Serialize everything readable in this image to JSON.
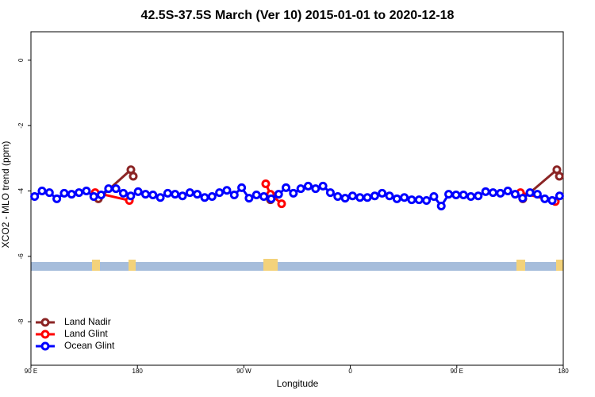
{
  "chart_data": {
    "type": "line",
    "title": "42.5S-37.5S March (Ver 10)   2015-01-01 to 2020-12-18",
    "x_label": "Longitude",
    "y_label": "XCO2 - MLO trend (ppm)",
    "xlim": [
      90,
      540
    ],
    "xticks": [
      {
        "value": 90,
        "label": "90 E"
      },
      {
        "value": 180,
        "label": "180"
      },
      {
        "value": 270,
        "label": "90 W"
      },
      {
        "value": 360,
        "label": "0"
      },
      {
        "value": 450,
        "label": "90 E"
      },
      {
        "value": 540,
        "label": "180"
      }
    ],
    "ylim": [
      -9.33,
      0.87
    ],
    "yticks": [
      -8,
      -6,
      -4,
      -2,
      0
    ],
    "legend": "bottom-left",
    "series": [
      {
        "name": "Land Nadir",
        "color": "#8b2525",
        "x": [
          147,
          174.5,
          176.5,
          292.5,
          505.8,
          534.6,
          536.7
        ],
        "values": [
          -4.24,
          -3.35,
          -3.55,
          -4.27,
          -4.24,
          -3.35,
          -3.55
        ]
      },
      {
        "name": "Land Glint",
        "color": "#ff0000",
        "x": [
          144.3,
          173.2,
          288.5,
          292.5,
          301.9,
          503.8,
          533.3
        ],
        "values": [
          -4.05,
          -4.29,
          -3.78,
          -4.1,
          -4.39,
          -4.05,
          -4.32
        ]
      },
      {
        "name": "Ocean Glint",
        "color": "#0000ff",
        "x": [
          93.125,
          99.375,
          105.625,
          111.875,
          118.125,
          124.375,
          130.625,
          136.875,
          143.125,
          149.375,
          155.625,
          161.875,
          168.125,
          174.375,
          180.625,
          186.875,
          193.125,
          199.375,
          205.625,
          211.875,
          218.125,
          224.375,
          230.625,
          236.875,
          243.125,
          249.375,
          255.625,
          261.875,
          268.125,
          274.375,
          280.625,
          286.875,
          293.125,
          299.375,
          305.625,
          311.875,
          318.125,
          324.375,
          330.625,
          336.875,
          343.125,
          349.375,
          355.625,
          361.875,
          368.125,
          374.375,
          380.625,
          386.875,
          393.125,
          399.375,
          405.625,
          411.875,
          418.125,
          424.375,
          430.625,
          436.875,
          443.125,
          449.375,
          455.625,
          461.875,
          468.125,
          474.375,
          480.625,
          486.875,
          493.125,
          499.375,
          505.625,
          511.875,
          518.125,
          524.375,
          530.625,
          536.875
        ],
        "values": [
          -4.17,
          -4.0,
          -4.05,
          -4.24,
          -4.07,
          -4.1,
          -4.05,
          -4.0,
          -4.17,
          -4.12,
          -3.93,
          -3.93,
          -4.07,
          -4.15,
          -4.02,
          -4.1,
          -4.12,
          -4.2,
          -4.07,
          -4.1,
          -4.15,
          -4.05,
          -4.1,
          -4.2,
          -4.17,
          -4.05,
          -3.98,
          -4.12,
          -3.9,
          -4.22,
          -4.12,
          -4.17,
          -4.24,
          -4.1,
          -3.9,
          -4.07,
          -3.93,
          -3.85,
          -3.93,
          -3.85,
          -4.05,
          -4.17,
          -4.22,
          -4.15,
          -4.2,
          -4.2,
          -4.15,
          -4.07,
          -4.15,
          -4.24,
          -4.2,
          -4.27,
          -4.27,
          -4.29,
          -4.17,
          -4.46,
          -4.1,
          -4.12,
          -4.12,
          -4.17,
          -4.15,
          -4.02,
          -4.05,
          -4.07,
          -4.0,
          -4.1,
          -4.22,
          -4.05,
          -4.1,
          -4.24,
          -4.29,
          -4.15
        ]
      }
    ]
  }
}
